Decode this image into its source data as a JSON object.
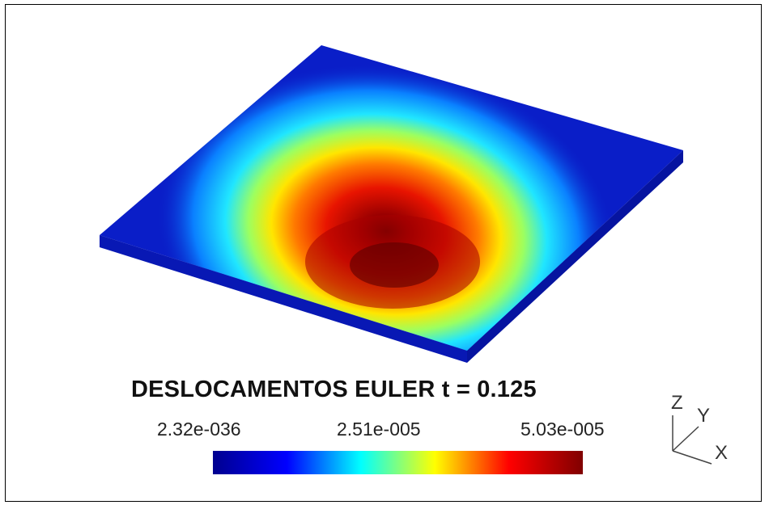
{
  "title": "DESLOCAMENTOS EULER t = 0.125",
  "colorbar": {
    "min_label": "2.32e-036",
    "mid_label": "2.51e-005",
    "max_label": "5.03e-005",
    "colormap": [
      "#00008f",
      "#0000ff",
      "#00ffff",
      "#ffff00",
      "#ff0000",
      "#800000"
    ]
  },
  "axes": {
    "z_label": "Z",
    "y_label": "Y",
    "x_label": "X"
  },
  "plate": {
    "base_color": "#0a1ec8",
    "hotspot_color": "#7a0000"
  }
}
